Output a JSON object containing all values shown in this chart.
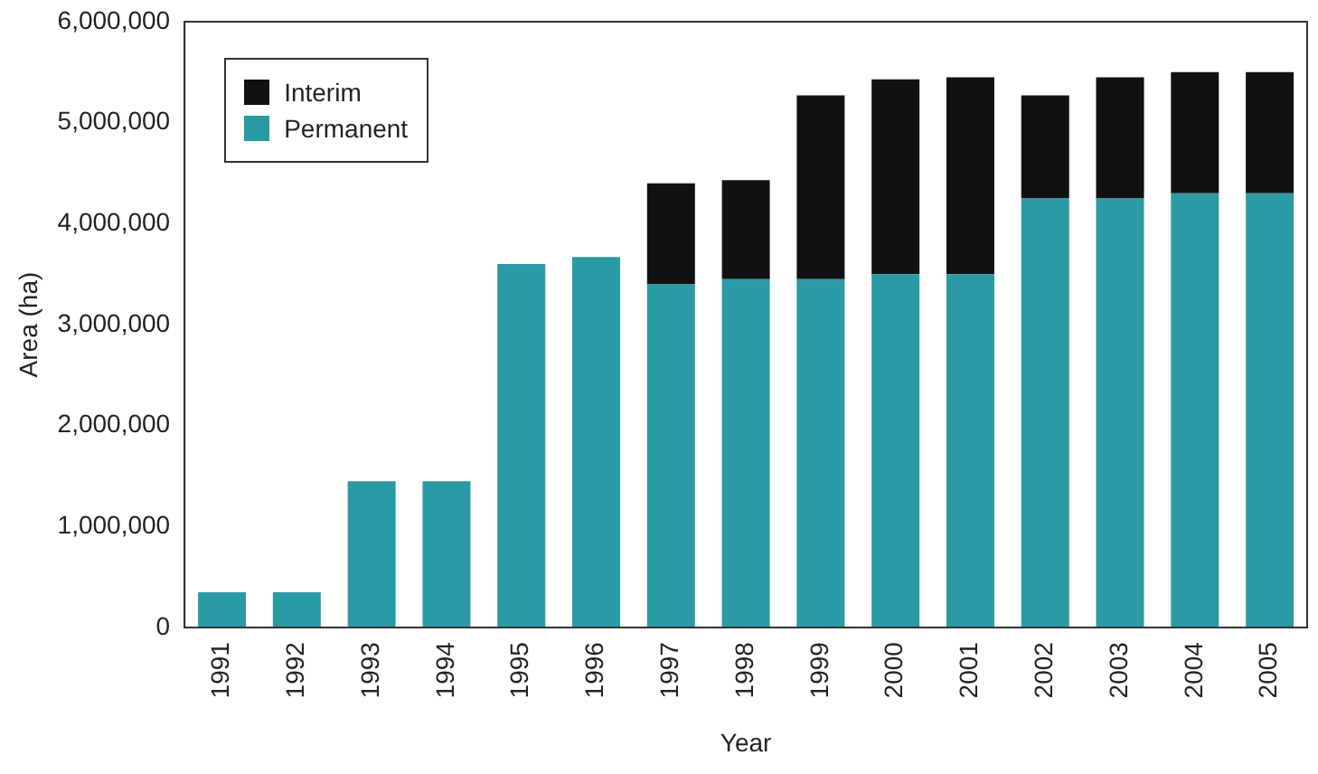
{
  "chart_data": {
    "type": "bar",
    "stacked": true,
    "xlabel": "Year",
    "ylabel": "Area (ha)",
    "categories": [
      "1991",
      "1992",
      "1993",
      "1994",
      "1995",
      "1996",
      "1997",
      "1998",
      "1999",
      "2000",
      "2001",
      "2002",
      "2003",
      "2004",
      "2005"
    ],
    "series": [
      {
        "name": "Permanent",
        "color": "#2a9aa4",
        "values": [
          350000,
          350000,
          1450000,
          1450000,
          3600000,
          3670000,
          3400000,
          3450000,
          3450000,
          3500000,
          3500000,
          4250000,
          4250000,
          4300000,
          4300000
        ]
      },
      {
        "name": "Interim",
        "color": "#111111",
        "values": [
          0,
          0,
          0,
          0,
          0,
          0,
          1000000,
          980000,
          1820000,
          1930000,
          1950000,
          1020000,
          1200000,
          1200000,
          1200000
        ]
      }
    ],
    "ylim": [
      0,
      6000000
    ],
    "yticks": [
      {
        "value": 0,
        "label": "0"
      },
      {
        "value": 1000000,
        "label": "1,000,000"
      },
      {
        "value": 2000000,
        "label": "2,000,000"
      },
      {
        "value": 3000000,
        "label": "3,000,000"
      },
      {
        "value": 4000000,
        "label": "4,000,000"
      },
      {
        "value": 5000000,
        "label": "5,000,000"
      },
      {
        "value": 6000000,
        "label": "6,000,000"
      }
    ],
    "grid": false,
    "legend": "top left"
  }
}
